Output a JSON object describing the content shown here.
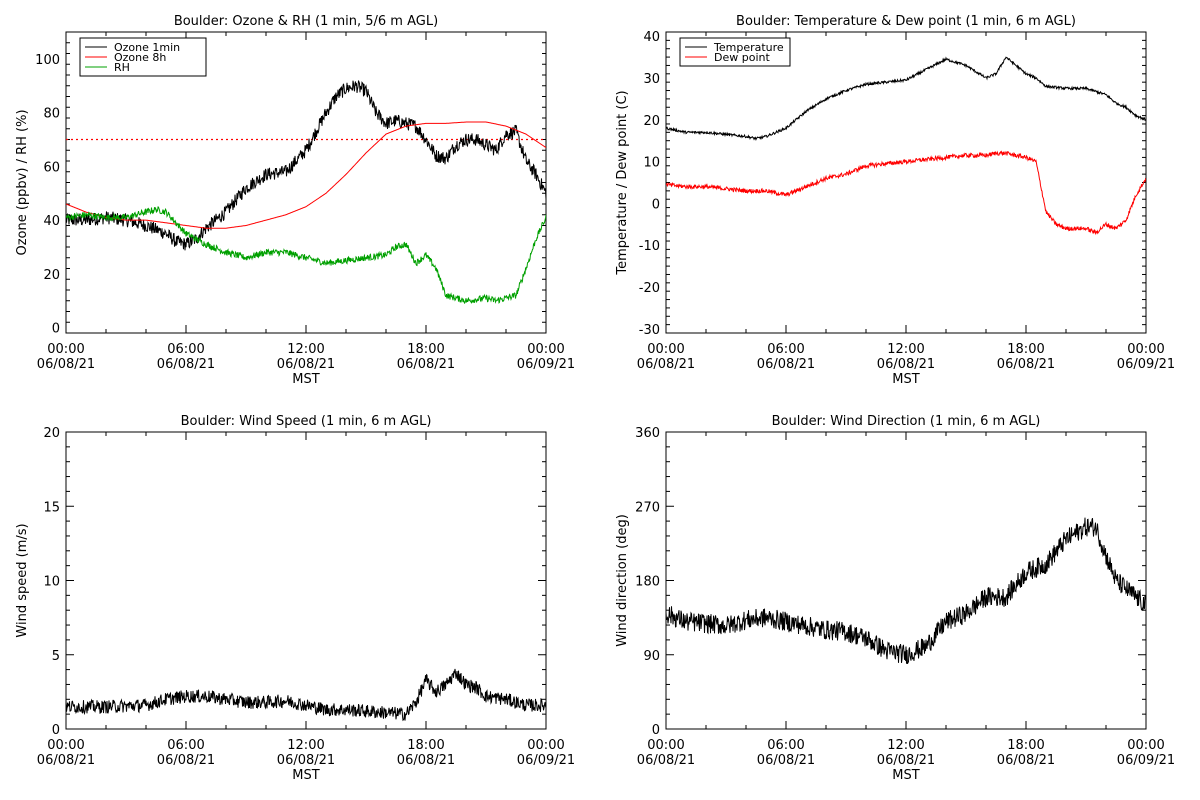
{
  "chart_data": [
    {
      "type": "line",
      "title": "Boulder: Ozone & RH (1 min, 5/6 m AGL)",
      "xlabel": "MST",
      "ylabel": "Ozone (ppbv) / RH (%)",
      "xlim": [
        0,
        24
      ],
      "ylim": [
        -2,
        110
      ],
      "yticks": [
        0,
        20,
        40,
        60,
        80,
        100
      ],
      "x_tick_labels": [
        [
          "00:00",
          "06/08/21"
        ],
        [
          "06:00",
          "06/08/21"
        ],
        [
          "12:00",
          "06/08/21"
        ],
        [
          "18:00",
          "06/08/21"
        ],
        [
          "00:00",
          "06/09/21"
        ]
      ],
      "legend": "top-left",
      "reference_line": {
        "y": 70,
        "color": "#ff0000",
        "style": "dotted"
      },
      "series": [
        {
          "name": "Ozone 1min",
          "color": "#000000",
          "noise": 2.5,
          "x": [
            0,
            1,
            2,
            3,
            4,
            5,
            5.5,
            6,
            6.5,
            7,
            7.5,
            8,
            9,
            10,
            11,
            12,
            13,
            13.5,
            14,
            14.5,
            15,
            15.5,
            16,
            16.5,
            17,
            17.5,
            18,
            18.5,
            19,
            19.5,
            20,
            20.5,
            21,
            21.5,
            22,
            22.5,
            23,
            23.5,
            24
          ],
          "y": [
            40,
            40,
            41,
            40,
            38,
            35,
            32,
            31,
            33,
            37,
            40,
            43,
            52,
            57,
            58,
            66,
            80,
            86,
            89,
            90,
            88,
            80,
            76,
            77,
            76,
            75,
            70,
            64,
            63,
            68,
            70,
            70,
            68,
            66,
            72,
            73,
            62,
            57,
            50
          ]
        },
        {
          "name": "Ozone 8h",
          "color": "#ff0000",
          "noise": 0,
          "x": [
            0,
            1,
            2,
            3,
            4,
            5,
            6,
            7,
            8,
            9,
            10,
            11,
            12,
            13,
            14,
            15,
            16,
            17,
            18,
            19,
            20,
            21,
            22,
            23,
            24
          ],
          "y": [
            46,
            43,
            41,
            40,
            40,
            39,
            38,
            37,
            37,
            38,
            40,
            42,
            45,
            50,
            57,
            65,
            72,
            75,
            76,
            76,
            76.5,
            76.5,
            75,
            72,
            67
          ]
        },
        {
          "name": "RH",
          "color": "#00a000",
          "noise": 1.2,
          "x": [
            0,
            1,
            2,
            3,
            4,
            4.5,
            5,
            5.5,
            6,
            7,
            8,
            9,
            10,
            11,
            12,
            13,
            14,
            15,
            16,
            16.5,
            17,
            17.5,
            18,
            18.5,
            19,
            19.5,
            20,
            21,
            21.5,
            22,
            22.5,
            23,
            23.5,
            24
          ],
          "y": [
            41,
            42,
            41,
            41,
            43,
            44,
            43,
            39,
            35,
            31,
            28,
            26,
            28,
            28,
            26,
            24,
            25,
            26,
            27,
            30,
            31,
            24,
            27,
            22,
            12,
            11,
            10,
            11,
            10,
            11,
            12,
            22,
            33,
            41
          ]
        }
      ]
    },
    {
      "type": "line",
      "title": "Boulder: Temperature & Dew point (1 min, 6 m AGL)",
      "xlabel": "MST",
      "ylabel": "Temperature / Dew point (C)",
      "xlim": [
        0,
        24
      ],
      "ylim": [
        -31,
        41
      ],
      "yticks": [
        -30,
        -20,
        -10,
        0,
        10,
        20,
        30,
        40
      ],
      "x_tick_labels": [
        [
          "00:00",
          "06/08/21"
        ],
        [
          "06:00",
          "06/08/21"
        ],
        [
          "12:00",
          "06/08/21"
        ],
        [
          "18:00",
          "06/08/21"
        ],
        [
          "00:00",
          "06/09/21"
        ]
      ],
      "legend": "top-left",
      "series": [
        {
          "name": "Temperature",
          "color": "#000000",
          "noise": 0.3,
          "x": [
            0,
            1,
            2,
            3,
            4,
            4.5,
            5,
            6,
            7,
            8,
            9,
            10,
            11,
            12,
            13,
            14,
            15,
            16,
            16.5,
            17,
            17.5,
            18,
            18.5,
            19,
            20,
            21,
            22,
            22.5,
            23,
            23.5,
            24
          ],
          "y": [
            18,
            17,
            17,
            16.5,
            16,
            15.5,
            16,
            18,
            22,
            25,
            27,
            28.5,
            29,
            29.5,
            32,
            34.5,
            33,
            30,
            31,
            35,
            33,
            31,
            30,
            28,
            27.5,
            27.5,
            26,
            24,
            23,
            21,
            20
          ]
        },
        {
          "name": "Dew point",
          "color": "#ff0000",
          "noise": 0.5,
          "x": [
            0,
            1,
            2,
            3,
            4,
            5,
            5.5,
            6,
            6.5,
            7,
            8,
            9,
            10,
            11,
            12,
            13,
            14,
            15,
            16,
            16.5,
            17,
            17.5,
            18,
            18.5,
            19,
            19.5,
            20,
            21,
            21.5,
            22,
            22.5,
            23,
            23.5,
            24
          ],
          "y": [
            4.5,
            4,
            4,
            3.5,
            3,
            3,
            2.5,
            2,
            3,
            4,
            6,
            7,
            9,
            9.5,
            10,
            10.5,
            11,
            11.5,
            11.5,
            12,
            12,
            11.5,
            11,
            10,
            -2,
            -5,
            -6,
            -6,
            -7,
            -5,
            -6,
            -4,
            2,
            6
          ]
        }
      ]
    },
    {
      "type": "line",
      "title": "Boulder: Wind Speed (1 min, 6 m AGL)",
      "xlabel": "MST",
      "ylabel": "Wind speed (m/s)",
      "xlim": [
        0,
        24
      ],
      "ylim": [
        0,
        20
      ],
      "yticks": [
        0,
        5,
        10,
        15,
        20
      ],
      "x_tick_labels": [
        [
          "00:00",
          "06/08/21"
        ],
        [
          "06:00",
          "06/08/21"
        ],
        [
          "12:00",
          "06/08/21"
        ],
        [
          "18:00",
          "06/08/21"
        ],
        [
          "00:00",
          "06/09/21"
        ]
      ],
      "series": [
        {
          "name": "",
          "color": "#000000",
          "noise": 0.45,
          "x": [
            0,
            2,
            4,
            5,
            6,
            7,
            8,
            9,
            10,
            11,
            12,
            13,
            14,
            15,
            16,
            17,
            17.5,
            18,
            18.5,
            19,
            19.5,
            20,
            20.5,
            21,
            22,
            23,
            24
          ],
          "y": [
            1.5,
            1.5,
            1.6,
            2,
            2.2,
            2.2,
            2,
            1.8,
            1.8,
            1.9,
            1.6,
            1.3,
            1.3,
            1.2,
            1.1,
            1,
            1.8,
            3.3,
            2.5,
            3,
            3.8,
            3,
            2.8,
            2.2,
            2,
            1.6,
            1.6
          ]
        }
      ]
    },
    {
      "type": "line",
      "title": "Boulder: Wind Direction (1 min, 6 m AGL)",
      "xlabel": "MST",
      "ylabel": "Wind direction (deg)",
      "xlim": [
        0,
        24
      ],
      "ylim": [
        0,
        360
      ],
      "yticks": [
        0,
        90,
        180,
        270,
        360
      ],
      "x_tick_labels": [
        [
          "00:00",
          "06/08/21"
        ],
        [
          "06:00",
          "06/08/21"
        ],
        [
          "12:00",
          "06/08/21"
        ],
        [
          "18:00",
          "06/08/21"
        ],
        [
          "00:00",
          "06/09/21"
        ]
      ],
      "series": [
        {
          "name": "",
          "color": "#000000",
          "noise": 12,
          "x": [
            0,
            1,
            2,
            3,
            4,
            5,
            6,
            7,
            8,
            9,
            10,
            11,
            12,
            13,
            14,
            15,
            16,
            17,
            18,
            19,
            20,
            21,
            21.5,
            22,
            22.5,
            23,
            23.5,
            24
          ],
          "y": [
            140,
            130,
            128,
            125,
            132,
            135,
            130,
            125,
            120,
            118,
            110,
            95,
            90,
            100,
            130,
            140,
            160,
            160,
            190,
            200,
            230,
            245,
            245,
            210,
            180,
            170,
            160,
            150
          ]
        }
      ]
    }
  ]
}
